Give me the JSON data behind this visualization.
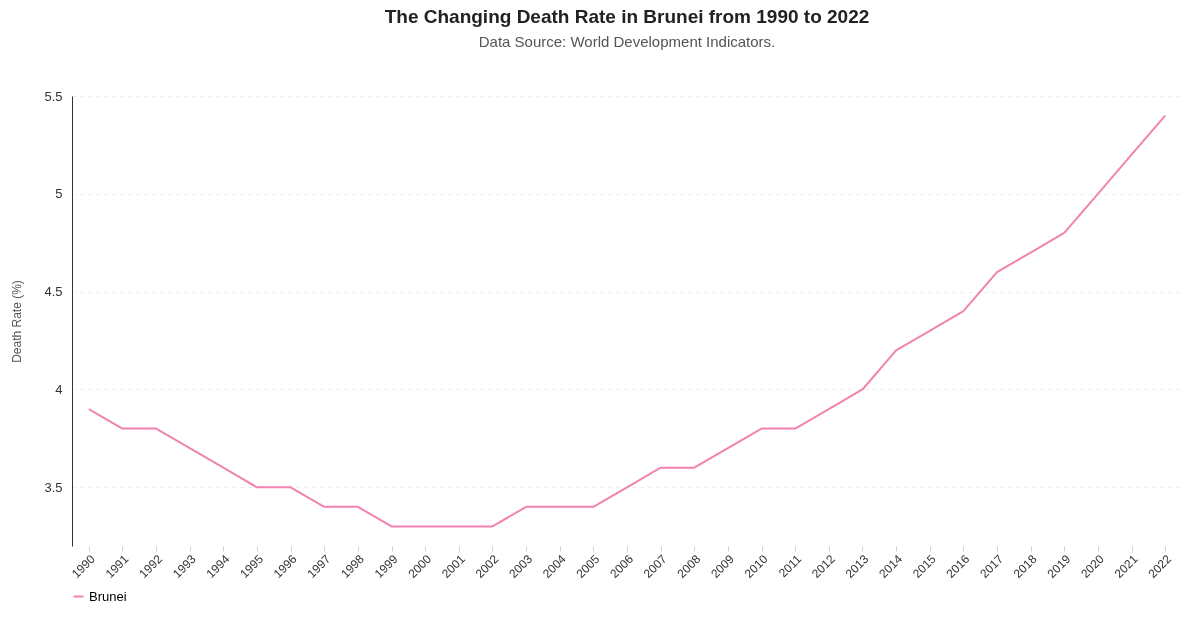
{
  "chart_data": {
    "type": "line",
    "title": "The Changing Death Rate in Brunei from 1990 to 2022",
    "subtitle": "Data Source: World Development Indicators.",
    "ylabel": "Death Rate (%)",
    "categories": [
      "1990",
      "1991",
      "1992",
      "1993",
      "1994",
      "1995",
      "1996",
      "1997",
      "1998",
      "1999",
      "2000",
      "2001",
      "2002",
      "2003",
      "2004",
      "2005",
      "2006",
      "2007",
      "2008",
      "2009",
      "2010",
      "2011",
      "2012",
      "2013",
      "2014",
      "2015",
      "2016",
      "2017",
      "2018",
      "2019",
      "2020",
      "2021",
      "2022"
    ],
    "series": [
      {
        "name": "Brunei",
        "color": "#f283b0",
        "values": [
          3.9,
          3.8,
          3.8,
          3.7,
          3.6,
          3.5,
          3.5,
          3.4,
          3.4,
          3.3,
          3.3,
          3.3,
          3.3,
          3.4,
          3.4,
          3.4,
          3.5,
          3.6,
          3.6,
          3.7,
          3.8,
          3.8,
          3.9,
          4.0,
          4.2,
          4.3,
          4.4,
          4.6,
          4.7,
          4.8,
          5.0,
          5.2,
          5.4
        ]
      }
    ],
    "ylim": [
      3.2,
      5.5
    ],
    "yticks": [
      3.5,
      4,
      4.5,
      5,
      5.5
    ],
    "grid": "y",
    "legend": "bottom",
    "marker": "none",
    "line_style": "solid"
  }
}
